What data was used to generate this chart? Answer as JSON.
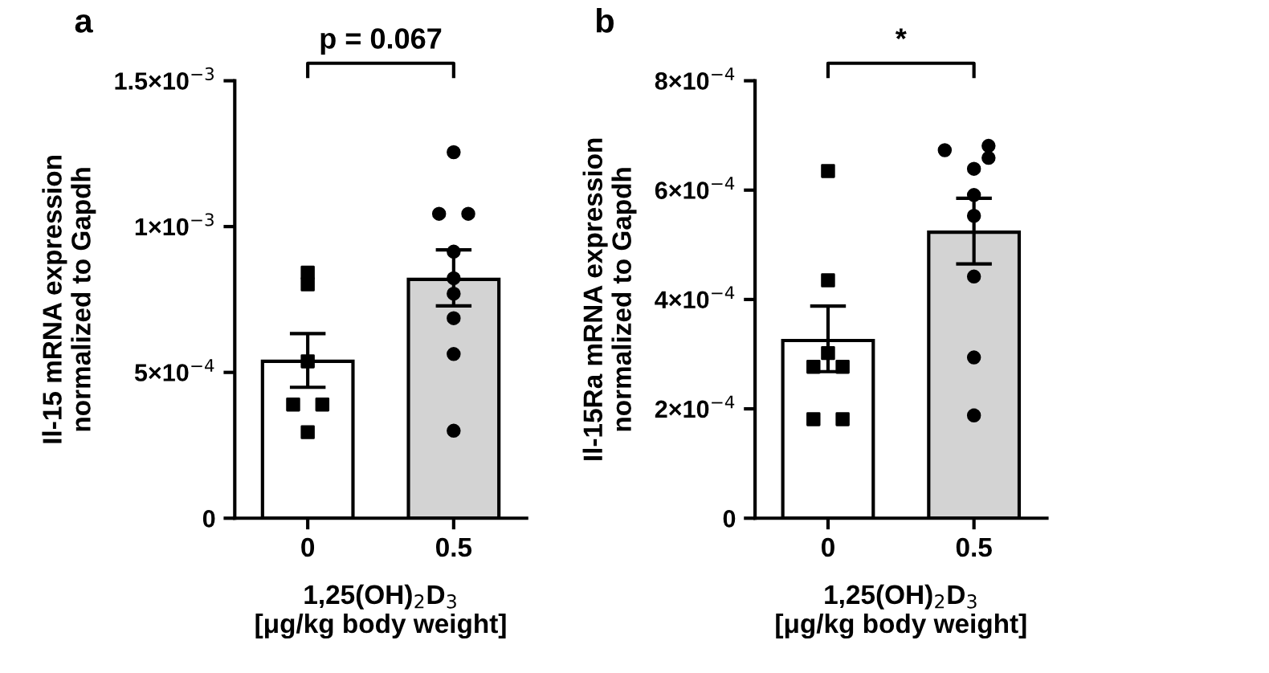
{
  "chart_data": [
    {
      "type": "bar",
      "title": "a",
      "ylabel": "Il-15 mRNA expression\nnormalized to Gapdh",
      "xlabel": "1,25(OH)$_{2}$D$_{3}$\n[μg/kg body weight]",
      "categories": [
        "0",
        "0.5"
      ],
      "ylim": [
        0,
        0.0015
      ],
      "yticks": [
        {
          "value": 0,
          "label": "0"
        },
        {
          "value": 0.0005,
          "label": "5×10$^{−4}$"
        },
        {
          "value": 0.001,
          "label": "1×10$^{−3}$"
        },
        {
          "value": 0.0015,
          "label": "1.5×10$^{−3}$"
        }
      ],
      "grid": false,
      "legend": false,
      "series": [
        {
          "colors": [
            "#ffffff",
            "#d3d3d3"
          ],
          "values": [
            0.000538,
            0.000819
          ],
          "errors": [
            [
              0.000449,
              0.000633
            ],
            [
              0.000728,
              0.00092
            ]
          ]
        },
        {
          "type": "scatter",
          "color": "#000000",
          "marker": "square",
          "x": [
            "0",
            "0",
            "0",
            "0",
            "0",
            "0"
          ],
          "values": [
            0.000802,
            0.000842,
            0.000538,
            0.00039,
            0.00039,
            0.000295
          ]
        },
        {
          "type": "scatter",
          "color": "#000000",
          "marker": "circle",
          "x": [
            "0.5",
            "0.5",
            "0.5",
            "0.5",
            "0.5",
            "0.5",
            "0.5",
            "0.5",
            "0.5"
          ],
          "values": [
            0.001255,
            0.001044,
            0.001044,
            0.000914,
            0.000823,
            0.00077,
            0.000686,
            0.000563,
            0.0003
          ]
        }
      ],
      "annotations": [
        "p = 0.067"
      ]
    },
    {
      "type": "bar",
      "title": "b",
      "ylabel": "Il-15Ra mRNA expression\nnormalized to Gapdh",
      "xlabel": "1,25(OH)$_{2}$D$_{3}$\n[μg/kg body weight]",
      "categories": [
        "0",
        "0.5"
      ],
      "ylim": [
        0,
        0.0008
      ],
      "yticks": [
        {
          "value": 0,
          "label": "0"
        },
        {
          "value": 0.0002,
          "label": "2×10$^{−4}$"
        },
        {
          "value": 0.0004,
          "label": "4×10$^{−4}$"
        },
        {
          "value": 0.0006,
          "label": "6×10$^{−4}$"
        },
        {
          "value": 0.0008,
          "label": "8×10$^{−4}$"
        }
      ],
      "grid": false,
      "legend": false,
      "series": [
        {
          "colors": [
            "#ffffff",
            "#d3d3d3"
          ],
          "values": [
            0.000325,
            0.000523
          ],
          "errors": [
            [
              0.000268,
              0.000388
            ],
            [
              0.000465,
              0.000585
            ]
          ]
        },
        {
          "type": "scatter",
          "color": "#000000",
          "marker": "square",
          "x": [
            "0",
            "0",
            "0",
            "0",
            "0",
            "0",
            "0"
          ],
          "values": [
            0.000635,
            0.000435,
            0.000302,
            0.000277,
            0.000277,
            0.000181,
            0.000181
          ]
        },
        {
          "type": "scatter",
          "color": "#000000",
          "marker": "circle",
          "x": [
            "0.5",
            "0.5",
            "0.5",
            "0.5",
            "0.5",
            "0.5",
            "0.5",
            "0.5",
            "0.5"
          ],
          "values": [
            0.000673,
            0.000681,
            0.000659,
            0.000639,
            0.000591,
            0.000553,
            0.000442,
            0.000294,
            0.000188
          ]
        }
      ],
      "annotations": [
        "*"
      ]
    }
  ]
}
